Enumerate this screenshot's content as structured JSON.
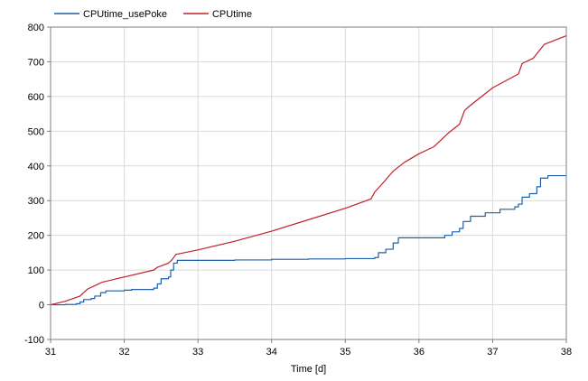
{
  "chart_data": {
    "type": "line",
    "title": "",
    "xlabel": "Time [d]",
    "ylabel": "",
    "xlim": [
      31,
      38
    ],
    "ylim": [
      -100,
      800
    ],
    "grid": true,
    "legend_position": "top-left",
    "x_ticks": [
      "31",
      "32",
      "33",
      "34",
      "35",
      "36",
      "37",
      "38"
    ],
    "y_ticks": [
      "-100",
      "0",
      "100",
      "200",
      "300",
      "400",
      "500",
      "600",
      "700",
      "800"
    ],
    "series": [
      {
        "name": "CPUtime_usePoke",
        "color": "#1f5fa8",
        "step": true,
        "points": [
          [
            31.0,
            0
          ],
          [
            31.2,
            1
          ],
          [
            31.35,
            3
          ],
          [
            31.4,
            8
          ],
          [
            31.45,
            15
          ],
          [
            31.55,
            18
          ],
          [
            31.6,
            25
          ],
          [
            31.68,
            35
          ],
          [
            31.75,
            40
          ],
          [
            32.0,
            42
          ],
          [
            32.1,
            44
          ],
          [
            32.4,
            48
          ],
          [
            32.45,
            60
          ],
          [
            32.5,
            75
          ],
          [
            32.6,
            80
          ],
          [
            32.63,
            100
          ],
          [
            32.67,
            120
          ],
          [
            32.72,
            128
          ],
          [
            33.0,
            128
          ],
          [
            33.5,
            129
          ],
          [
            34.0,
            131
          ],
          [
            34.5,
            132
          ],
          [
            35.0,
            133
          ],
          [
            35.4,
            136
          ],
          [
            35.45,
            150
          ],
          [
            35.55,
            160
          ],
          [
            35.65,
            178
          ],
          [
            35.72,
            193
          ],
          [
            36.0,
            193
          ],
          [
            36.3,
            193
          ],
          [
            36.35,
            200
          ],
          [
            36.45,
            210
          ],
          [
            36.55,
            220
          ],
          [
            36.6,
            240
          ],
          [
            36.7,
            255
          ],
          [
            36.9,
            265
          ],
          [
            37.1,
            275
          ],
          [
            37.3,
            282
          ],
          [
            37.35,
            290
          ],
          [
            37.4,
            310
          ],
          [
            37.5,
            320
          ],
          [
            37.6,
            340
          ],
          [
            37.65,
            365
          ],
          [
            37.75,
            372
          ],
          [
            38.0,
            373
          ]
        ]
      },
      {
        "name": "CPUtime",
        "color": "#c0202a",
        "step": false,
        "points": [
          [
            31.0,
            0
          ],
          [
            31.2,
            10
          ],
          [
            31.4,
            25
          ],
          [
            31.5,
            45
          ],
          [
            31.7,
            65
          ],
          [
            32.0,
            80
          ],
          [
            32.4,
            100
          ],
          [
            32.45,
            108
          ],
          [
            32.6,
            120
          ],
          [
            32.65,
            130
          ],
          [
            32.7,
            145
          ],
          [
            33.0,
            158
          ],
          [
            33.5,
            183
          ],
          [
            34.0,
            212
          ],
          [
            34.5,
            245
          ],
          [
            35.0,
            278
          ],
          [
            35.35,
            305
          ],
          [
            35.4,
            325
          ],
          [
            35.5,
            348
          ],
          [
            35.65,
            385
          ],
          [
            35.8,
            410
          ],
          [
            36.0,
            435
          ],
          [
            36.2,
            455
          ],
          [
            36.4,
            495
          ],
          [
            36.55,
            520
          ],
          [
            36.62,
            560
          ],
          [
            36.7,
            575
          ],
          [
            37.0,
            625
          ],
          [
            37.35,
            665
          ],
          [
            37.4,
            695
          ],
          [
            37.55,
            710
          ],
          [
            37.7,
            750
          ],
          [
            38.0,
            775
          ]
        ]
      }
    ]
  }
}
